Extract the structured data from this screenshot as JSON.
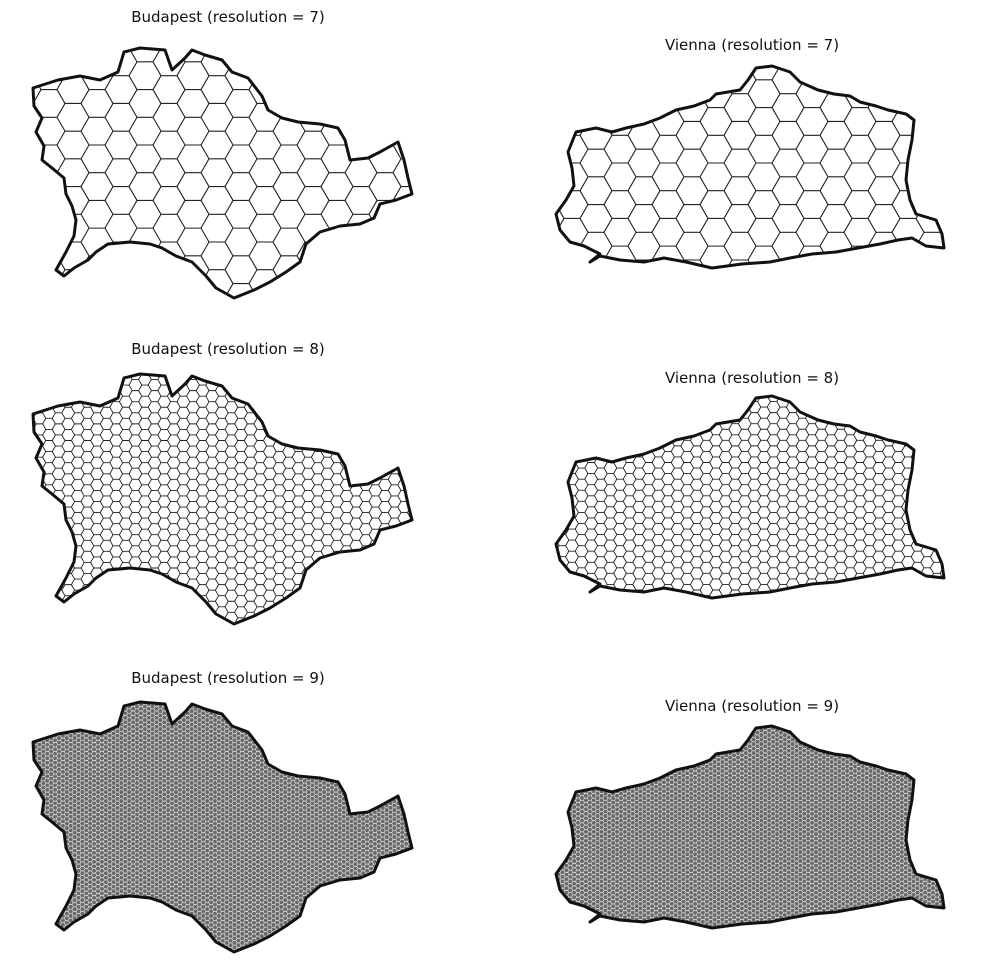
{
  "panels": [
    {
      "title": "Budapest (resolution = 7)",
      "city": "budapest",
      "resolution": 7
    },
    {
      "title": "Vienna (resolution = 7)",
      "city": "vienna",
      "resolution": 7
    },
    {
      "title": "Budapest (resolution = 8)",
      "city": "budapest",
      "resolution": 8
    },
    {
      "title": "Vienna (resolution = 8)",
      "city": "vienna",
      "resolution": 8
    },
    {
      "title": "Budapest (resolution = 9)",
      "city": "budapest",
      "resolution": 9
    },
    {
      "title": "Vienna (resolution = 9)",
      "city": "vienna",
      "resolution": 9
    }
  ],
  "colors": {
    "outline": "#111111",
    "hex_edge": "#222222",
    "dense_fill": "#6a6a6a"
  }
}
